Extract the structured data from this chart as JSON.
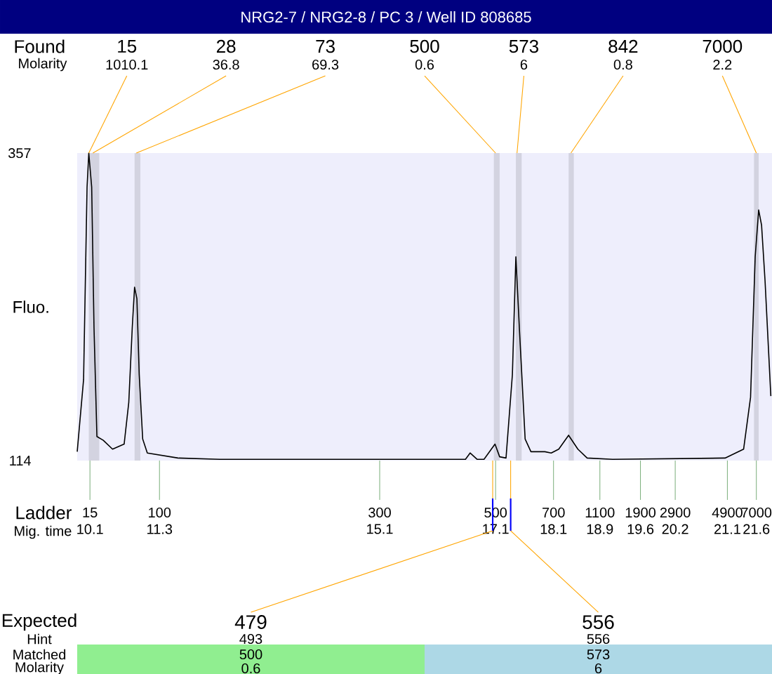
{
  "chart_data": {
    "type": "line",
    "title": "NRG2-7 / NRG2-8 / PC 3 / Well ID 808685",
    "ylabel": "Fluo.",
    "series": [
      {
        "color": "#000000",
        "x": [
          9.88,
          9.99,
          10.05,
          10.08,
          10.13,
          10.17,
          10.22,
          10.33,
          10.49,
          10.69,
          10.77,
          10.83,
          10.87,
          10.91,
          10.95,
          11.01,
          11.09,
          11.62,
          12.34,
          15.09,
          16.58,
          16.66,
          16.78,
          16.9,
          17.09,
          17.17,
          17.28,
          17.39,
          17.45,
          17.51,
          17.61,
          17.71,
          17.95,
          18.06,
          18.19,
          18.36,
          18.52,
          18.68,
          19.12,
          21.06,
          21.38,
          21.5,
          21.58,
          21.64,
          21.69,
          21.75,
          21.85
        ],
        "values": [
          121,
          178,
          330,
          357,
          330,
          219,
          133,
          130,
          123,
          127,
          160,
          219,
          251,
          242,
          182,
          131,
          120,
          116,
          115,
          115,
          115,
          120,
          115,
          115,
          127,
          117,
          116,
          182,
          275,
          219,
          131,
          121,
          121,
          120,
          123,
          134,
          123,
          116,
          115,
          116,
          123,
          164,
          275,
          312,
          300,
          256,
          165
        ]
      }
    ],
    "xlim": [
      9.88,
      21.87
    ],
    "ylim": [
      114,
      357
    ],
    "xticks": [
      10.1,
      11.3,
      15.1,
      17.1,
      18.1,
      18.9,
      19.6,
      20.2,
      21.1,
      21.6
    ],
    "yticks": [
      114,
      357
    ],
    "marker": "none",
    "line_style": "solid",
    "bands": [
      {
        "axis": "x",
        "from": 10.08,
        "to": 10.26,
        "color": "#d3d3e0"
      },
      {
        "axis": "x",
        "from": 10.87,
        "to": 10.97,
        "color": "#d3d3e0"
      },
      {
        "axis": "x",
        "from": 17.07,
        "to": 17.17,
        "color": "#d3d3e0"
      },
      {
        "axis": "x",
        "from": 17.45,
        "to": 17.55,
        "color": "#d3d3e0"
      },
      {
        "axis": "x",
        "from": 18.36,
        "to": 18.45,
        "color": "#d3d3e0"
      },
      {
        "axis": "x",
        "from": 21.56,
        "to": 21.64,
        "color": "#d3d3e0"
      }
    ],
    "annotations": [
      "Found",
      "Molarity",
      {
        "text": "15",
        "x": 10.08,
        "y": 357
      },
      {
        "text": "28",
        "x": 10.15,
        "y": 357
      },
      {
        "text": "73",
        "x": 10.9,
        "y": 357
      },
      {
        "text": "500",
        "x": 17.1,
        "y": 357
      },
      {
        "text": "573",
        "x": 17.47,
        "y": 357
      },
      {
        "text": "842",
        "x": 18.4,
        "y": 357
      },
      {
        "text": "7000",
        "x": 21.6,
        "y": 357
      },
      "1010.1",
      "36.8",
      "69.3",
      "0.6",
      "6",
      "0.8",
      "2.2",
      "Ladder",
      "Mig. time",
      "15",
      "100",
      "300",
      "500",
      "700",
      "1100",
      "1900",
      "2900",
      "4900",
      "7000",
      "Expected",
      "Hint",
      "Matched",
      "Molarity",
      {
        "text": "479",
        "x": 17.05,
        "y": 114
      },
      {
        "text": "556",
        "x": 17.36,
        "y": 114
      },
      "493",
      "556",
      "500",
      "573",
      "0.6",
      "6"
    ]
  }
}
